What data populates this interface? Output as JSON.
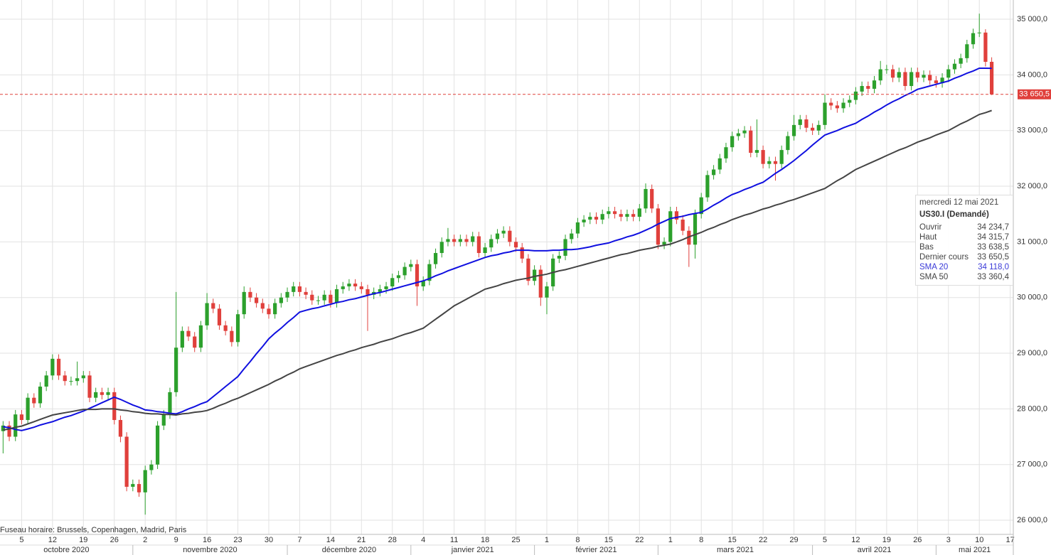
{
  "chart_data": {
    "type": "candlestick",
    "up_color": "#2ca02c",
    "down_color": "#e0403c",
    "ylim": [
      25745,
      35345
    ],
    "yticks": [
      {
        "value": 26000,
        "label": "26 000,0"
      },
      {
        "value": 27000,
        "label": "27 000,0"
      },
      {
        "value": 28000,
        "label": "28 000,0"
      },
      {
        "value": 29000,
        "label": "29 000,0"
      },
      {
        "value": 30000,
        "label": "30 000,0"
      },
      {
        "value": 31000,
        "label": "31 000,0"
      },
      {
        "value": 32000,
        "label": "32 000,0"
      },
      {
        "value": 33000,
        "label": "33 000,0"
      },
      {
        "value": 34000,
        "label": "34 000,0"
      },
      {
        "value": 35000,
        "label": "35 000,0"
      }
    ],
    "grid": true,
    "categories": [
      null,
      null,
      null,
      "5",
      null,
      null,
      null,
      null,
      "12",
      null,
      null,
      null,
      null,
      "19",
      null,
      null,
      null,
      null,
      "26",
      null,
      null,
      null,
      null,
      "2",
      null,
      null,
      null,
      null,
      "9",
      null,
      null,
      null,
      null,
      "16",
      null,
      null,
      null,
      null,
      "23",
      null,
      null,
      null,
      null,
      "30",
      null,
      null,
      null,
      null,
      "7",
      null,
      null,
      null,
      null,
      "14",
      null,
      null,
      null,
      null,
      "21",
      null,
      null,
      null,
      null,
      "28",
      null,
      null,
      null,
      null,
      "4",
      null,
      null,
      null,
      null,
      "11",
      null,
      null,
      null,
      null,
      "18",
      null,
      null,
      null,
      null,
      "25",
      null,
      null,
      null,
      null,
      "1",
      null,
      null,
      null,
      null,
      "8",
      null,
      null,
      null,
      null,
      "15",
      null,
      null,
      null,
      null,
      "22",
      null,
      null,
      null,
      null,
      "1",
      null,
      null,
      null,
      null,
      "8",
      null,
      null,
      null,
      null,
      "15",
      null,
      null,
      null,
      null,
      "22",
      null,
      null,
      null,
      null,
      "29",
      null,
      null,
      null,
      null,
      "5",
      null,
      null,
      null,
      null,
      "12",
      null,
      null,
      null,
      null,
      "19",
      null,
      null,
      null,
      null,
      "26",
      null,
      null,
      null,
      null,
      "3",
      null,
      null,
      null,
      null,
      "10",
      null,
      null,
      null,
      null,
      "17"
    ],
    "month_labels": [
      "octobre 2020",
      "novembre 2020",
      "décembre 2020",
      "janvier 2021",
      "février 2021",
      "mars 2021",
      "avril 2021",
      "mai 2021"
    ],
    "open": [
      27600,
      27700,
      27500,
      27900,
      27800,
      28200,
      28100,
      28400,
      28600,
      28900,
      28600,
      28500,
      28500,
      28550,
      28600,
      28200,
      28300,
      28250,
      28300,
      27800,
      27500,
      26600,
      26650,
      26500,
      26900,
      27000,
      27700,
      27900,
      28300,
      29100,
      29400,
      29300,
      29100,
      29500,
      29900,
      29800,
      29500,
      29400,
      29200,
      29700,
      30100,
      30000,
      29900,
      29800,
      29700,
      29900,
      30000,
      30100,
      30200,
      30100,
      30050,
      29950,
      29950,
      30050,
      29900,
      30150,
      30200,
      30250,
      30200,
      30150,
      30050,
      30100,
      30150,
      30200,
      30350,
      30400,
      30550,
      30600,
      30200,
      30300,
      30600,
      30800,
      31000,
      31050,
      31000,
      31050,
      31000,
      31100,
      30800,
      30900,
      31050,
      31150,
      31200,
      31000,
      30900,
      30700,
      30300,
      30500,
      30000,
      30200,
      30700,
      30750,
      31050,
      31150,
      31350,
      31400,
      31450,
      31400,
      31500,
      31550,
      31500,
      31450,
      31500,
      31450,
      31600,
      31950,
      31600,
      30950,
      31000,
      31550,
      31400,
      31200,
      30950,
      31500,
      31800,
      32200,
      32300,
      32500,
      32700,
      32900,
      32950,
      33000,
      32600,
      32650,
      32400,
      32450,
      32400,
      32650,
      32900,
      33100,
      33200,
      33050,
      33000,
      33100,
      33500,
      33450,
      33400,
      33500,
      33550,
      33700,
      33800,
      33750,
      33900,
      34100,
      34100,
      33950,
      34050,
      33800,
      34050,
      33950,
      34000,
      33900,
      33850,
      33950,
      34100,
      34200,
      34300,
      34550,
      34750,
      34760,
      34234.7,
      null,
      null,
      null
    ],
    "high": [
      27780,
      27780,
      27980,
      27980,
      28280,
      28280,
      28480,
      28680,
      28980,
      28980,
      28680,
      28580,
      28850,
      28680,
      28680,
      28380,
      28380,
      28380,
      28380,
      27880,
      27580,
      26730,
      26730,
      26980,
      27080,
      27780,
      27980,
      28380,
      30100,
      29480,
      29480,
      29380,
      29580,
      30080,
      29980,
      29880,
      29580,
      29480,
      29780,
      30200,
      30180,
      30080,
      29980,
      29880,
      29980,
      30080,
      30180,
      30280,
      30280,
      30180,
      30130,
      30030,
      30130,
      30130,
      30230,
      30280,
      30330,
      30330,
      30280,
      30230,
      30180,
      30230,
      30280,
      30430,
      30480,
      30630,
      30680,
      30680,
      30380,
      30680,
      30880,
      31080,
      31250,
      31130,
      31130,
      31130,
      31180,
      31180,
      30980,
      31130,
      31230,
      31280,
      31280,
      31080,
      30980,
      30780,
      30580,
      30580,
      30280,
      30780,
      30830,
      31130,
      31230,
      31430,
      31480,
      31530,
      31530,
      31580,
      31630,
      31630,
      31580,
      31580,
      31580,
      31680,
      32050,
      32030,
      31680,
      31080,
      31630,
      31630,
      31480,
      31280,
      31580,
      31880,
      32280,
      32380,
      32580,
      32780,
      32980,
      33030,
      33080,
      33080,
      33200,
      32730,
      32530,
      32530,
      32730,
      32980,
      33280,
      33280,
      33280,
      33130,
      33180,
      33650,
      33580,
      33530,
      33580,
      33630,
      33780,
      33880,
      33880,
      33980,
      34250,
      34180,
      34180,
      34130,
      34130,
      34130,
      34130,
      34080,
      34080,
      33980,
      34030,
      34180,
      34280,
      34380,
      34630,
      34830,
      35100,
      34820,
      34315.7,
      null,
      null,
      null
    ],
    "low": [
      27200,
      27420,
      27420,
      27720,
      27720,
      28020,
      28020,
      28320,
      28520,
      28520,
      28420,
      28420,
      28420,
      28470,
      28120,
      28120,
      28170,
      28170,
      27720,
      27400,
      26520,
      26520,
      26420,
      26100,
      26820,
      26920,
      27620,
      27820,
      28220,
      29020,
      29220,
      29020,
      29020,
      29420,
      29720,
      29420,
      29320,
      29120,
      29120,
      29620,
      29920,
      29820,
      29720,
      29620,
      29620,
      29820,
      29920,
      30020,
      30020,
      29970,
      29870,
      29870,
      29870,
      29820,
      29820,
      30070,
      30120,
      30120,
      30070,
      29400,
      29970,
      30020,
      30070,
      30120,
      30270,
      30320,
      30470,
      29850,
      30120,
      30220,
      30520,
      30720,
      30920,
      30920,
      30920,
      30920,
      30920,
      30720,
      30720,
      30820,
      30970,
      31070,
      30920,
      30820,
      30620,
      30220,
      30220,
      29850,
      29700,
      30120,
      30620,
      30670,
      30970,
      31070,
      31270,
      31320,
      31320,
      31320,
      31420,
      31420,
      31370,
      31370,
      31370,
      31370,
      31520,
      31520,
      30870,
      30870,
      30920,
      31320,
      31120,
      30550,
      30700,
      31420,
      31720,
      32120,
      32220,
      32420,
      32620,
      32820,
      32870,
      32520,
      32520,
      32320,
      32320,
      32100,
      32320,
      32570,
      32820,
      33020,
      32970,
      32920,
      32920,
      33020,
      33370,
      33320,
      33320,
      33420,
      33470,
      33620,
      33670,
      33670,
      33820,
      34020,
      33870,
      33870,
      33720,
      33720,
      33870,
      33870,
      33820,
      33770,
      33770,
      33870,
      34020,
      34120,
      34220,
      34470,
      34680,
      34150,
      33638.5,
      null,
      null,
      null
    ],
    "close": [
      27700,
      27500,
      27900,
      27800,
      28200,
      28100,
      28400,
      28600,
      28900,
      28600,
      28500,
      28500,
      28550,
      28600,
      28200,
      28300,
      28250,
      28300,
      27800,
      27500,
      26600,
      26650,
      26500,
      26900,
      27000,
      27700,
      27900,
      28300,
      29100,
      29400,
      29300,
      29100,
      29500,
      29900,
      29800,
      29500,
      29400,
      29200,
      29700,
      30100,
      30000,
      29900,
      29800,
      29700,
      29900,
      30000,
      30100,
      30200,
      30100,
      30050,
      29950,
      29950,
      30050,
      29900,
      30150,
      30200,
      30250,
      30200,
      30150,
      30050,
      30100,
      30150,
      30200,
      30350,
      30400,
      30550,
      30600,
      30200,
      30300,
      30600,
      30800,
      31000,
      31050,
      31000,
      31050,
      31000,
      31100,
      30800,
      30900,
      31050,
      31150,
      31200,
      31000,
      30900,
      30700,
      30300,
      30500,
      30000,
      30200,
      30700,
      30750,
      31050,
      31150,
      31350,
      31400,
      31450,
      31400,
      31500,
      31550,
      31500,
      31450,
      31500,
      31450,
      31600,
      31950,
      31600,
      30950,
      31000,
      31550,
      31400,
      31200,
      30950,
      31500,
      31800,
      32200,
      32300,
      32500,
      32700,
      32900,
      32950,
      33000,
      32600,
      32650,
      32400,
      32450,
      32400,
      32650,
      32900,
      33100,
      33200,
      33050,
      33000,
      33100,
      33500,
      33450,
      33400,
      33500,
      33550,
      33700,
      33800,
      33750,
      33900,
      34100,
      34100,
      33950,
      34050,
      33800,
      34050,
      33950,
      34000,
      33900,
      33850,
      33950,
      34100,
      34200,
      34300,
      34550,
      34750,
      34760,
      34234.7,
      33650.5,
      null,
      null,
      null
    ],
    "overlays": [
      {
        "name": "SMA 20",
        "color": "#1010e0",
        "values": [
          27680,
          27660,
          27630,
          27610,
          27640,
          27670,
          27710,
          27740,
          27770,
          27810,
          27850,
          27880,
          27920,
          27960,
          28010,
          28060,
          28110,
          28160,
          28210,
          28170,
          28120,
          28070,
          28030,
          27980,
          27970,
          27950,
          27940,
          27920,
          27910,
          27950,
          28000,
          28040,
          28090,
          28130,
          28220,
          28310,
          28400,
          28490,
          28580,
          28720,
          28850,
          28990,
          29120,
          29260,
          29360,
          29450,
          29550,
          29640,
          29740,
          29770,
          29800,
          29820,
          29850,
          29880,
          29910,
          29930,
          29960,
          29980,
          30010,
          30040,
          30070,
          30090,
          30120,
          30150,
          30180,
          30210,
          30240,
          30270,
          30300,
          30340,
          30390,
          30430,
          30480,
          30520,
          30560,
          30600,
          30640,
          30680,
          30720,
          30750,
          30770,
          30800,
          30820,
          30850,
          30850,
          30850,
          30840,
          30840,
          30840,
          30850,
          30850,
          30860,
          30860,
          30870,
          30890,
          30910,
          30940,
          30960,
          30980,
          31020,
          31050,
          31090,
          31120,
          31160,
          31210,
          31260,
          31320,
          31370,
          31420,
          31440,
          31460,
          31490,
          31510,
          31530,
          31590,
          31660,
          31720,
          31790,
          31850,
          31890,
          31940,
          31980,
          32030,
          32070,
          32150,
          32230,
          32300,
          32380,
          32460,
          32550,
          32640,
          32740,
          32830,
          32920,
          32960,
          33000,
          33050,
          33090,
          33130,
          33200,
          33260,
          33330,
          33390,
          33460,
          33520,
          33570,
          33630,
          33680,
          33740,
          33770,
          33800,
          33830,
          33860,
          33890,
          33940,
          33980,
          34030,
          34070,
          34120,
          34120,
          34118,
          null,
          null,
          null
        ]
      },
      {
        "name": "SMA 50",
        "color": "#444444",
        "values": [
          27620,
          27640,
          27670,
          27690,
          27730,
          27770,
          27810,
          27850,
          27890,
          27910,
          27930,
          27950,
          27970,
          27990,
          27990,
          27990,
          28000,
          28000,
          28000,
          27980,
          27970,
          27950,
          27940,
          27920,
          27910,
          27910,
          27900,
          27900,
          27890,
          27910,
          27920,
          27940,
          27950,
          27970,
          28010,
          28060,
          28100,
          28150,
          28190,
          28240,
          28290,
          28340,
          28390,
          28440,
          28500,
          28550,
          28610,
          28660,
          28720,
          28760,
          28800,
          28840,
          28880,
          28920,
          28960,
          28990,
          29030,
          29060,
          29100,
          29130,
          29160,
          29200,
          29230,
          29260,
          29300,
          29340,
          29370,
          29410,
          29450,
          29530,
          29610,
          29690,
          29770,
          29850,
          29910,
          29970,
          30030,
          30090,
          30150,
          30180,
          30210,
          30250,
          30280,
          30310,
          30330,
          30350,
          30380,
          30400,
          30420,
          30450,
          30480,
          30500,
          30530,
          30560,
          30590,
          30620,
          30650,
          30680,
          30710,
          30740,
          30770,
          30790,
          30820,
          30850,
          30870,
          30890,
          30920,
          30940,
          30960,
          31000,
          31040,
          31090,
          31130,
          31170,
          31220,
          31260,
          31310,
          31350,
          31400,
          31440,
          31480,
          31510,
          31550,
          31590,
          31620,
          31660,
          31690,
          31730,
          31760,
          31800,
          31840,
          31880,
          31920,
          31960,
          32030,
          32100,
          32160,
          32230,
          32300,
          32350,
          32400,
          32450,
          32500,
          32550,
          32600,
          32650,
          32690,
          32740,
          32790,
          32830,
          32870,
          32920,
          32960,
          33000,
          33060,
          33120,
          33170,
          33230,
          33290,
          33320,
          33360.4,
          null,
          null,
          null
        ]
      }
    ],
    "last_price": {
      "value": 33650.5,
      "label": "33 650,5"
    },
    "timezone_note": "Fuseau horaire: Brussels, Copenhagen, Madrid, Paris",
    "tooltip": {
      "date": "mercredi 12 mai 2021",
      "symbol": "US30.I (Demandé)",
      "rows": [
        {
          "name": "Ouvrir",
          "label": "34 234,7"
        },
        {
          "name": "Haut",
          "label": "34 315,7"
        },
        {
          "name": "Bas",
          "label": "33 638,5"
        },
        {
          "name": "Dernier cours",
          "label": "33 650,5"
        },
        {
          "name": "SMA 20",
          "label": "34 118,0",
          "color": "#3a3ad8"
        },
        {
          "name": "SMA 50",
          "label": "33 360,4"
        }
      ]
    }
  }
}
